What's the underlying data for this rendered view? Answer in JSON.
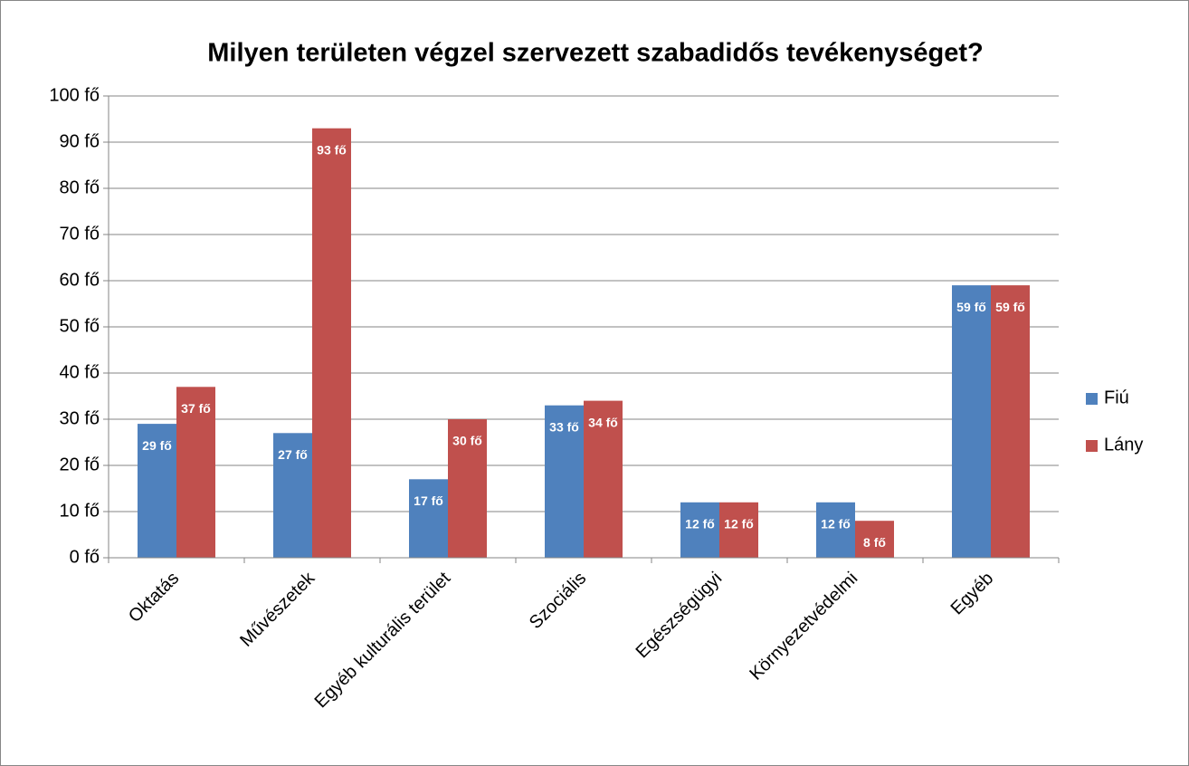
{
  "chart_data": {
    "type": "bar",
    "title": "Milyen területen végzel szervezett szabadidős tevékenységet?",
    "categories": [
      "Oktatás",
      "Művészetek",
      "Egyéb kulturális terület",
      "Szociális",
      "Egészségügyi",
      "Környezetvédelmi",
      "Egyéb"
    ],
    "series": [
      {
        "name": "Fiú",
        "color": "#4f81bd",
        "values": [
          29,
          27,
          17,
          33,
          12,
          12,
          59
        ],
        "value_labels": [
          "29 fő",
          "27 fő",
          "17 fő",
          "33 fő",
          "12 fő",
          "12 fő",
          "59 fő"
        ]
      },
      {
        "name": "Lány",
        "color": "#c0504d",
        "values": [
          37,
          93,
          30,
          34,
          12,
          8,
          59
        ],
        "value_labels": [
          "37 fő",
          "93 fő",
          "30 fő",
          "34 fő",
          "12 fő",
          "8 fő",
          "59 fő"
        ]
      }
    ],
    "ylim": [
      0,
      100
    ],
    "yticks": [
      {
        "value": 0,
        "label": "0 fő"
      },
      {
        "value": 10,
        "label": "10 fő"
      },
      {
        "value": 20,
        "label": "20 fő"
      },
      {
        "value": 30,
        "label": "30 fő"
      },
      {
        "value": 40,
        "label": "40 fő"
      },
      {
        "value": 50,
        "label": "50 fő"
      },
      {
        "value": 60,
        "label": "60 fő"
      },
      {
        "value": 70,
        "label": "70 fő"
      },
      {
        "value": 80,
        "label": "80 fő"
      },
      {
        "value": 90,
        "label": "90 fő"
      },
      {
        "value": 100,
        "label": "100 fő"
      }
    ],
    "grid": true,
    "legend": "right"
  }
}
